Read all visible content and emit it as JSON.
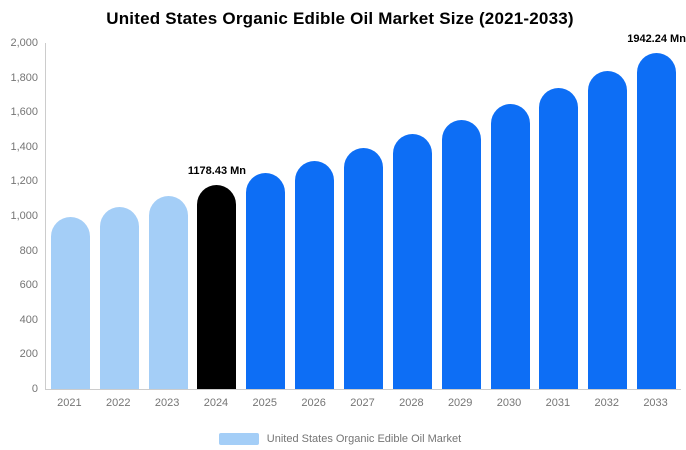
{
  "chart_data": {
    "type": "bar",
    "title": "United States Organic Edible Oil Market Size (2021-2033)",
    "categories": [
      "2021",
      "2022",
      "2023",
      "2024",
      "2025",
      "2026",
      "2027",
      "2028",
      "2029",
      "2030",
      "2031",
      "2032",
      "2033"
    ],
    "values": [
      997,
      1055,
      1115,
      1178.43,
      1246,
      1317,
      1392,
      1472,
      1556,
      1645,
      1739,
      1838,
      1942.24
    ],
    "value_unit": "Mn",
    "ylim": [
      0,
      2000
    ],
    "y_tick_step": 200,
    "y_tick_labels": [
      "0",
      "200",
      "400",
      "600",
      "800",
      "1,000",
      "1,200",
      "1,400",
      "1,600",
      "1,800",
      "2,000"
    ],
    "grid": false,
    "bar_roles": [
      "historical",
      "historical",
      "historical",
      "base_year",
      "forecast",
      "forecast",
      "forecast",
      "forecast",
      "forecast",
      "forecast",
      "forecast",
      "forecast",
      "forecast"
    ],
    "palette": {
      "historical": "#a4cef7",
      "base_year": "#000000",
      "forecast": "#0d6ef5"
    },
    "axis_line_color": "#cccccc",
    "tick_label_color": "#757575",
    "annotations": [
      {
        "category": "2024",
        "text": "1178.43 Mn"
      },
      {
        "category": "2033",
        "text": "1942.24 Mn"
      }
    ],
    "legend": {
      "position": "bottom",
      "label": "United States Organic Edible Oil Market",
      "swatch_color": "#a4cef7"
    }
  }
}
